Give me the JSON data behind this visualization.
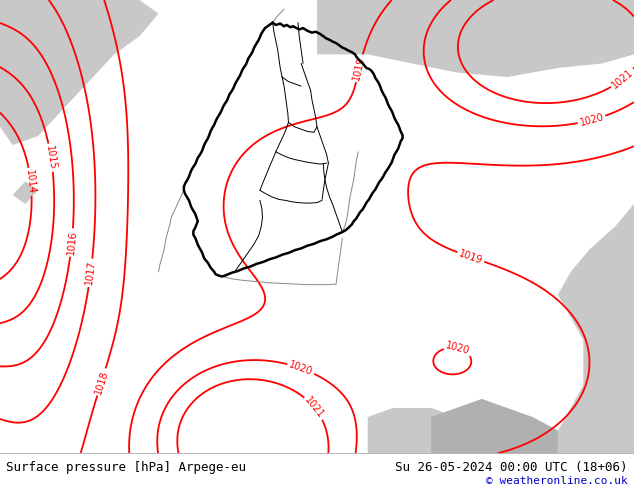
{
  "fig_width": 6.34,
  "fig_height": 4.9,
  "dpi": 100,
  "bg_color_map": "#a8d878",
  "bg_color_gray": "#c8c8c8",
  "bg_color_sea": "#b8d8b0",
  "contour_color": "#ff0000",
  "border_color_de": "#000000",
  "border_color_neighbor": "#888888",
  "bottom_bar_color": "#ffffff",
  "bottom_text_left": "Surface pressure [hPa] Arpege-eu",
  "bottom_text_right": "Su 26-05-2024 00:00 UTC (18+06)",
  "bottom_text_credit": "© weatheronline.co.uk",
  "text_color": "#000000",
  "credit_color": "#0000cc",
  "font_size_bottom": 9,
  "font_size_credit": 8,
  "font_size_contour_labels": 7,
  "contour_levels": [
    1014,
    1015,
    1016,
    1017,
    1018,
    1019,
    1020,
    1021
  ]
}
